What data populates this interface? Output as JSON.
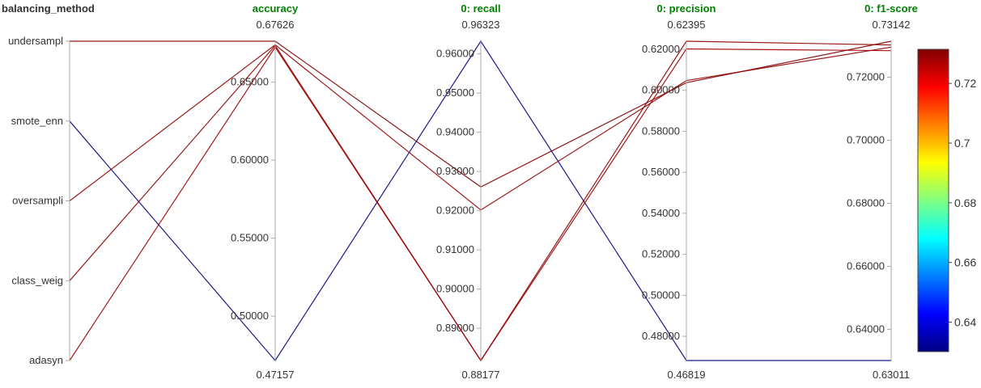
{
  "chart_data": {
    "type": "parallel_coordinates",
    "color_scale": {
      "colormap": "jet",
      "range": [
        0.63011,
        0.73142
      ],
      "ticks": [
        0.64,
        0.66,
        0.68,
        0.7,
        0.72
      ],
      "tick_labels": [
        "0.64",
        "0.66",
        "0.68",
        "0.7",
        "0.72"
      ],
      "color_by": "0: f1-score"
    },
    "dimensions": [
      {
        "name": "balancing_method",
        "type": "categorical",
        "title_color": "#333333",
        "categories": [
          "undersampl",
          "smote_enn",
          "oversampli",
          "class_weig",
          "adasyn"
        ]
      },
      {
        "name": "accuracy",
        "type": "numeric",
        "title_color": "#008000",
        "range": [
          0.47157,
          0.67626
        ],
        "range_labels": [
          "0.47157",
          "0.67626"
        ],
        "ticks": [
          0.5,
          0.55,
          0.6,
          0.65
        ],
        "tick_labels": [
          "0.50000",
          "0.55000",
          "0.60000",
          "0.65000"
        ]
      },
      {
        "name": "0: recall",
        "type": "numeric",
        "title_color": "#008000",
        "range": [
          0.88177,
          0.96323
        ],
        "range_labels": [
          "0.88177",
          "0.96323"
        ],
        "ticks": [
          0.89,
          0.9,
          0.91,
          0.92,
          0.93,
          0.94,
          0.95,
          0.96
        ],
        "tick_labels": [
          "0.89000",
          "0.90000",
          "0.91000",
          "0.92000",
          "0.93000",
          "0.94000",
          "0.95000",
          "0.96000"
        ]
      },
      {
        "name": "0: precision",
        "type": "numeric",
        "title_color": "#008000",
        "range": [
          0.46819,
          0.62395
        ],
        "range_labels": [
          "0.46819",
          "0.62395"
        ],
        "ticks": [
          0.48,
          0.5,
          0.52,
          0.54,
          0.56,
          0.58,
          0.6,
          0.62
        ],
        "tick_labels": [
          "0.48000",
          "0.50000",
          "0.52000",
          "0.54000",
          "0.56000",
          "0.58000",
          "0.60000",
          "0.62000"
        ]
      },
      {
        "name": "0: f1-score",
        "type": "numeric",
        "title_color": "#008000",
        "range": [
          0.63011,
          0.73142
        ],
        "range_labels": [
          "0.63011",
          "0.73142"
        ],
        "ticks": [
          0.64,
          0.66,
          0.68,
          0.7,
          0.72
        ],
        "tick_labels": [
          "0.64000",
          "0.66000",
          "0.68000",
          "0.70000",
          "0.72000"
        ]
      }
    ],
    "records": [
      {
        "balancing_method": "undersampl",
        "accuracy": 0.67626,
        "0: recall": 0.92605,
        "0: precision": 0.60372,
        "0: f1-score": 0.73142
      },
      {
        "balancing_method": "smote_enn",
        "accuracy": 0.47157,
        "0: recall": 0.96323,
        "0: precision": 0.46819,
        "0: f1-score": 0.63011
      },
      {
        "balancing_method": "oversampli",
        "accuracy": 0.67398,
        "0: recall": 0.92016,
        "0: precision": 0.60475,
        "0: f1-score": 0.72954
      },
      {
        "balancing_method": "class_weig",
        "accuracy": 0.67345,
        "0: recall": 0.88177,
        "0: precision": 0.62395,
        "0: f1-score": 0.73023
      },
      {
        "balancing_method": "adasyn",
        "accuracy": 0.67245,
        "0: recall": 0.88177,
        "0: precision": 0.62021,
        "0: f1-score": 0.72843
      }
    ]
  }
}
